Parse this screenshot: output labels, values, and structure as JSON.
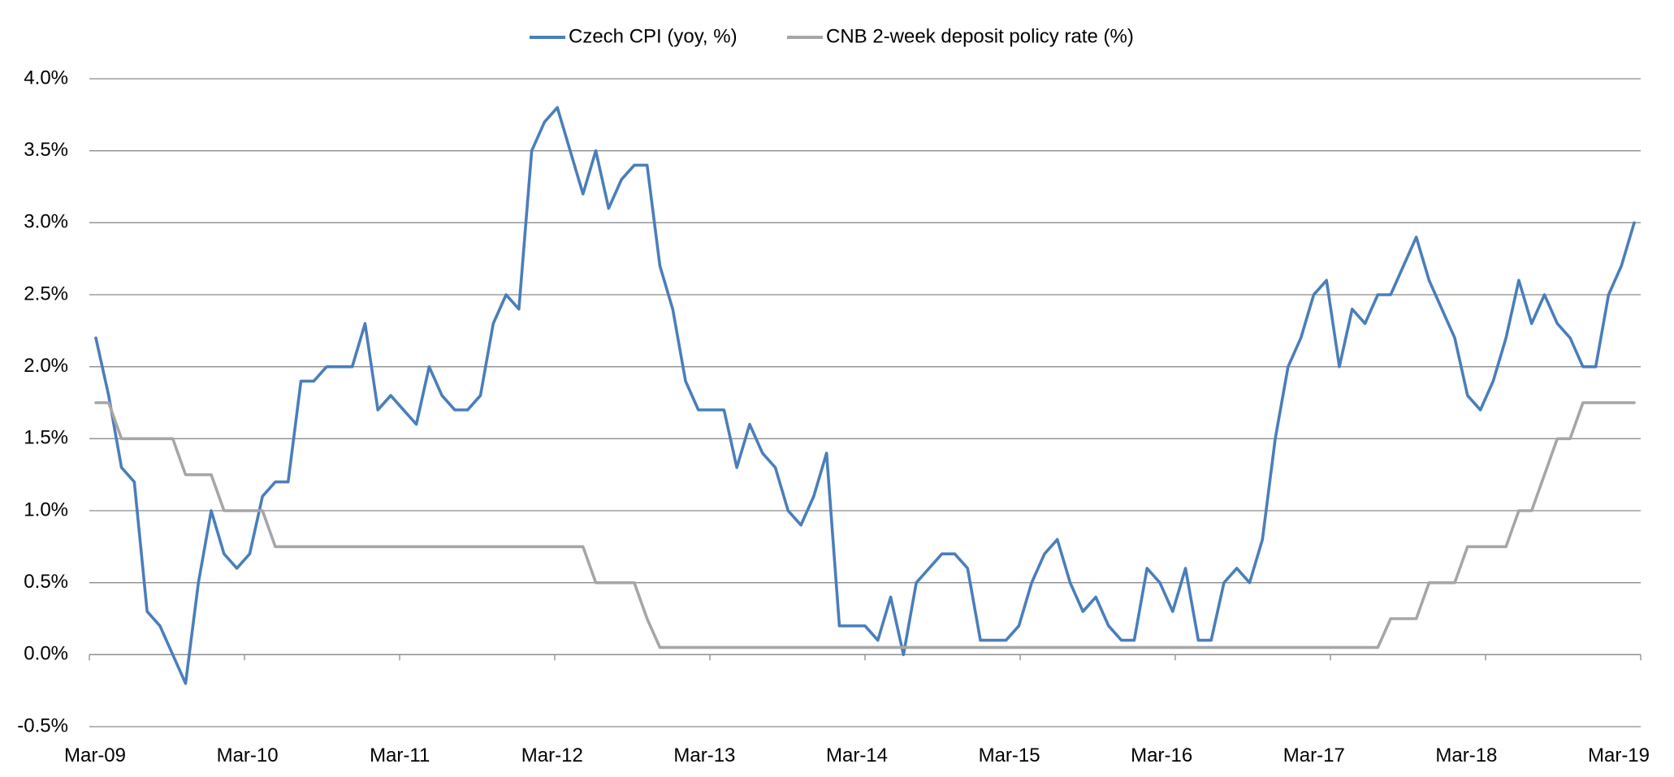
{
  "chart_data": {
    "type": "line",
    "title": "",
    "xlabel": "",
    "ylabel": "",
    "ylim": [
      -0.5,
      4.0
    ],
    "y_ticks": [
      "4.0%",
      "3.5%",
      "3.0%",
      "2.5%",
      "2.0%",
      "1.5%",
      "1.0%",
      "0.5%",
      "0.0%",
      "-0.5%"
    ],
    "x_ticks": [
      "Mar-09",
      "Mar-10",
      "Mar-11",
      "Mar-12",
      "Mar-13",
      "Mar-14",
      "Mar-15",
      "Mar-16",
      "Mar-17",
      "Mar-18",
      "Mar-19"
    ],
    "x_start": "Mar-09",
    "x_end": "Mar-19",
    "grid": true,
    "legend_position": "top",
    "series": [
      {
        "name": "Czech CPI (yoy, %)",
        "color": "#4a7ebb",
        "values": [
          2.2,
          1.8,
          1.3,
          1.2,
          0.3,
          0.2,
          0.0,
          -0.2,
          0.5,
          1.0,
          0.7,
          0.6,
          0.7,
          1.1,
          1.2,
          1.2,
          1.9,
          1.9,
          2.0,
          2.0,
          2.0,
          2.3,
          1.7,
          1.8,
          1.7,
          1.6,
          2.0,
          1.8,
          1.7,
          1.7,
          1.8,
          2.3,
          2.5,
          2.4,
          3.5,
          3.7,
          3.8,
          3.5,
          3.2,
          3.5,
          3.1,
          3.3,
          3.4,
          3.4,
          2.7,
          2.4,
          1.9,
          1.7,
          1.7,
          1.7,
          1.3,
          1.6,
          1.4,
          1.3,
          1.0,
          0.9,
          1.1,
          1.4,
          0.2,
          0.2,
          0.2,
          0.1,
          0.4,
          0.0,
          0.5,
          0.6,
          0.7,
          0.7,
          0.6,
          0.1,
          0.1,
          0.1,
          0.2,
          0.5,
          0.7,
          0.8,
          0.5,
          0.3,
          0.4,
          0.2,
          0.1,
          0.1,
          0.6,
          0.5,
          0.3,
          0.6,
          0.1,
          0.1,
          0.5,
          0.6,
          0.5,
          0.8,
          1.5,
          2.0,
          2.2,
          2.5,
          2.6,
          2.0,
          2.4,
          2.3,
          2.5,
          2.5,
          2.7,
          2.9,
          2.6,
          2.4,
          2.2,
          1.8,
          1.7,
          1.9,
          2.2,
          2.6,
          2.3,
          2.5,
          2.3,
          2.2,
          2.0,
          2.0,
          2.5,
          2.7,
          3.0
        ]
      },
      {
        "name": "CNB 2-week deposit policy rate (%)",
        "color": "#a6a6a6",
        "values": [
          1.75,
          1.75,
          1.5,
          1.5,
          1.5,
          1.5,
          1.5,
          1.25,
          1.25,
          1.25,
          1.0,
          1.0,
          1.0,
          1.0,
          0.75,
          0.75,
          0.75,
          0.75,
          0.75,
          0.75,
          0.75,
          0.75,
          0.75,
          0.75,
          0.75,
          0.75,
          0.75,
          0.75,
          0.75,
          0.75,
          0.75,
          0.75,
          0.75,
          0.75,
          0.75,
          0.75,
          0.75,
          0.75,
          0.75,
          0.5,
          0.5,
          0.5,
          0.5,
          0.25,
          0.05,
          0.05,
          0.05,
          0.05,
          0.05,
          0.05,
          0.05,
          0.05,
          0.05,
          0.05,
          0.05,
          0.05,
          0.05,
          0.05,
          0.05,
          0.05,
          0.05,
          0.05,
          0.05,
          0.05,
          0.05,
          0.05,
          0.05,
          0.05,
          0.05,
          0.05,
          0.05,
          0.05,
          0.05,
          0.05,
          0.05,
          0.05,
          0.05,
          0.05,
          0.05,
          0.05,
          0.05,
          0.05,
          0.05,
          0.05,
          0.05,
          0.05,
          0.05,
          0.05,
          0.05,
          0.05,
          0.05,
          0.05,
          0.05,
          0.05,
          0.05,
          0.05,
          0.05,
          0.05,
          0.05,
          0.05,
          0.05,
          0.25,
          0.25,
          0.25,
          0.5,
          0.5,
          0.5,
          0.75,
          0.75,
          0.75,
          0.75,
          1.0,
          1.0,
          1.25,
          1.5,
          1.5,
          1.75,
          1.75,
          1.75,
          1.75,
          1.75
        ]
      }
    ]
  }
}
